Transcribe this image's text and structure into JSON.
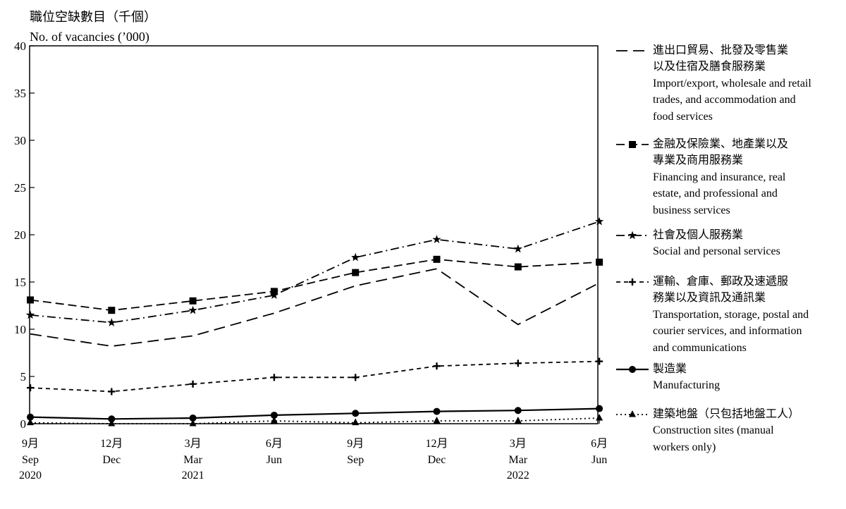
{
  "chart_data": {
    "type": "line",
    "ylabel_zh": "職位空缺數目（千個）",
    "ylabel_en": "No. of vacancies (’000)",
    "ylim": [
      0,
      40
    ],
    "yticks": [
      "0",
      "5",
      "10",
      "15",
      "20",
      "25",
      "30",
      "35",
      "40"
    ],
    "grid": false,
    "legend_position": "right",
    "categories": [
      {
        "month": "9月",
        "abbr": "Sep",
        "year": "2020"
      },
      {
        "month": "12月",
        "abbr": "Dec",
        "year": ""
      },
      {
        "month": "3月",
        "abbr": "Mar",
        "year": "2021"
      },
      {
        "month": "6月",
        "abbr": "Jun",
        "year": ""
      },
      {
        "month": "9月",
        "abbr": "Sep",
        "year": ""
      },
      {
        "month": "12月",
        "abbr": "Dec",
        "year": ""
      },
      {
        "month": "3月",
        "abbr": "Mar",
        "year": "2022"
      },
      {
        "month": "6月",
        "abbr": "Jun",
        "year": ""
      }
    ],
    "series": [
      {
        "key": "trade",
        "name_lines": [
          "進出口貿易、批發及零售業",
          "以及住宿及膳食服務業",
          "Import/export, wholesale and retail",
          "trades, and accommodation and",
          "food services"
        ],
        "line_style": "long-dash",
        "marker": "none",
        "values": [
          9.5,
          8.2,
          9.3,
          11.7,
          14.6,
          16.4,
          10.5,
          14.9
        ]
      },
      {
        "key": "finance",
        "name_lines": [
          "金融及保險業、地產業以及",
          "專業及商用服務業",
          "Financing and insurance, real",
          "estate, and professional and",
          "business services"
        ],
        "line_style": "dash",
        "marker": "square",
        "values": [
          13.1,
          12.0,
          13.0,
          14.0,
          16.0,
          17.4,
          16.6,
          17.1
        ]
      },
      {
        "key": "social",
        "name_lines": [
          "社會及個人服務業",
          "Social and personal services"
        ],
        "line_style": "dash-dot",
        "marker": "star",
        "values": [
          11.5,
          10.7,
          12.0,
          13.6,
          17.6,
          19.5,
          18.5,
          21.4
        ]
      },
      {
        "key": "transport",
        "name_lines": [
          "運輸、倉庫、郵政及速遞服",
          "務業以及資訊及通訊業",
          "Transportation, storage, postal and",
          "courier services, and information",
          "and communications"
        ],
        "line_style": "short-dash",
        "marker": "plus",
        "values": [
          3.8,
          3.4,
          4.2,
          4.9,
          4.9,
          6.1,
          6.4,
          6.6
        ]
      },
      {
        "key": "manufacturing",
        "name_lines": [
          "製造業",
          "Manufacturing"
        ],
        "line_style": "solid",
        "marker": "circle",
        "values": [
          0.7,
          0.5,
          0.6,
          0.9,
          1.1,
          1.3,
          1.4,
          1.6
        ]
      },
      {
        "key": "construction",
        "name_lines": [
          "建築地盤（只包括地盤工人）",
          "Construction sites (manual",
          "workers only)"
        ],
        "line_style": "dotted",
        "marker": "triangle",
        "values": [
          0.1,
          0.0,
          0.0,
          0.3,
          0.1,
          0.3,
          0.3,
          0.6
        ]
      }
    ]
  }
}
